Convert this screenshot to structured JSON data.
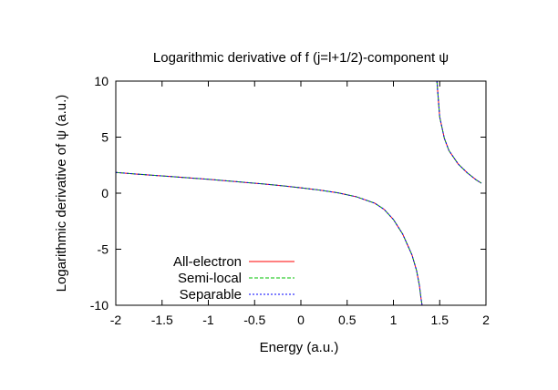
{
  "chart_data": {
    "type": "line",
    "title": "Logarithmic derivative of f (j=l+1/2)-component ψ",
    "xlabel": "Energy (a.u.)",
    "ylabel": "Logarithmic derivative of ψ (a.u.)",
    "xlim": [
      -2,
      2
    ],
    "ylim": [
      -10,
      10
    ],
    "xticks": [
      "-2",
      "-1.5",
      "-1",
      "-0.5",
      "0",
      "0.5",
      "1",
      "1.5",
      "2"
    ],
    "yticks": [
      "-10",
      "-5",
      "0",
      "5",
      "10"
    ],
    "grid": false,
    "legend_position": "bottom-left",
    "series": [
      {
        "name": "All-electron",
        "color": "#ff0000",
        "style": "solid",
        "segments": [
          [
            [
              -2.0,
              1.85
            ],
            [
              -1.8,
              1.72
            ],
            [
              -1.6,
              1.6
            ],
            [
              -1.4,
              1.48
            ],
            [
              -1.2,
              1.36
            ],
            [
              -1.0,
              1.24
            ],
            [
              -0.8,
              1.1
            ],
            [
              -0.6,
              0.96
            ],
            [
              -0.4,
              0.82
            ],
            [
              -0.2,
              0.66
            ],
            [
              0.0,
              0.48
            ],
            [
              0.2,
              0.28
            ],
            [
              0.4,
              0.03
            ],
            [
              0.6,
              -0.32
            ],
            [
              0.8,
              -0.9
            ],
            [
              0.9,
              -1.45
            ],
            [
              1.0,
              -2.35
            ],
            [
              1.1,
              -3.65
            ],
            [
              1.2,
              -5.5
            ],
            [
              1.25,
              -6.9
            ],
            [
              1.28,
              -8.2
            ],
            [
              1.3,
              -9.5
            ],
            [
              1.31,
              -10.0
            ]
          ],
          [
            [
              1.47,
              10.0
            ],
            [
              1.5,
              6.8
            ],
            [
              1.55,
              4.9
            ],
            [
              1.6,
              3.8
            ],
            [
              1.7,
              2.6
            ],
            [
              1.8,
              1.8
            ],
            [
              1.9,
              1.15
            ],
            [
              1.95,
              0.9
            ]
          ]
        ]
      },
      {
        "name": "Semi-local",
        "color": "#00c000",
        "style": "dashed",
        "segments": [
          [
            [
              -2.0,
              1.85
            ],
            [
              -1.8,
              1.72
            ],
            [
              -1.6,
              1.6
            ],
            [
              -1.4,
              1.48
            ],
            [
              -1.2,
              1.36
            ],
            [
              -1.0,
              1.24
            ],
            [
              -0.8,
              1.1
            ],
            [
              -0.6,
              0.96
            ],
            [
              -0.4,
              0.82
            ],
            [
              -0.2,
              0.66
            ],
            [
              0.0,
              0.48
            ],
            [
              0.2,
              0.28
            ],
            [
              0.4,
              0.03
            ],
            [
              0.6,
              -0.32
            ],
            [
              0.8,
              -0.9
            ],
            [
              0.9,
              -1.45
            ],
            [
              1.0,
              -2.35
            ],
            [
              1.1,
              -3.65
            ],
            [
              1.2,
              -5.5
            ],
            [
              1.25,
              -6.9
            ],
            [
              1.28,
              -8.2
            ],
            [
              1.3,
              -9.5
            ],
            [
              1.31,
              -10.0
            ]
          ],
          [
            [
              1.47,
              10.0
            ],
            [
              1.5,
              6.8
            ],
            [
              1.55,
              4.9
            ],
            [
              1.6,
              3.8
            ],
            [
              1.7,
              2.6
            ],
            [
              1.8,
              1.8
            ],
            [
              1.9,
              1.15
            ],
            [
              1.95,
              0.9
            ]
          ]
        ]
      },
      {
        "name": "Separable",
        "color": "#0000ff",
        "style": "dotted",
        "segments": [
          [
            [
              -2.0,
              1.85
            ],
            [
              -1.8,
              1.72
            ],
            [
              -1.6,
              1.6
            ],
            [
              -1.4,
              1.48
            ],
            [
              -1.2,
              1.36
            ],
            [
              -1.0,
              1.24
            ],
            [
              -0.8,
              1.1
            ],
            [
              -0.6,
              0.96
            ],
            [
              -0.4,
              0.82
            ],
            [
              -0.2,
              0.66
            ],
            [
              0.0,
              0.48
            ],
            [
              0.2,
              0.28
            ],
            [
              0.4,
              0.03
            ],
            [
              0.6,
              -0.32
            ],
            [
              0.8,
              -0.9
            ],
            [
              0.9,
              -1.45
            ],
            [
              1.0,
              -2.35
            ],
            [
              1.1,
              -3.65
            ],
            [
              1.2,
              -5.5
            ],
            [
              1.25,
              -6.9
            ],
            [
              1.28,
              -8.2
            ],
            [
              1.3,
              -9.5
            ],
            [
              1.31,
              -10.0
            ]
          ],
          [
            [
              1.47,
              10.0
            ],
            [
              1.5,
              6.8
            ],
            [
              1.55,
              4.9
            ],
            [
              1.6,
              3.8
            ],
            [
              1.7,
              2.6
            ],
            [
              1.8,
              1.8
            ],
            [
              1.9,
              1.15
            ],
            [
              1.95,
              0.9
            ]
          ]
        ]
      }
    ]
  }
}
